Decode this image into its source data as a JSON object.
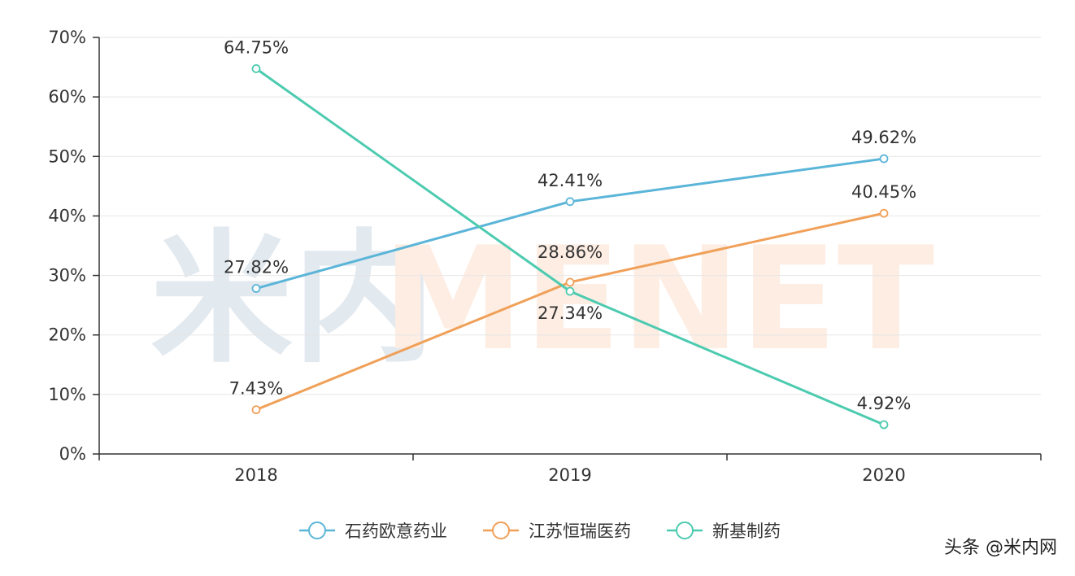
{
  "chart_data": {
    "type": "line",
    "categories": [
      "2018",
      "2019",
      "2020"
    ],
    "ylim": [
      0,
      70
    ],
    "y_ticks": [
      0,
      10,
      20,
      30,
      40,
      50,
      60,
      70
    ],
    "y_tick_suffix": "%",
    "grid": true,
    "legend_position": "bottom-center",
    "series": [
      {
        "name": "石药欧意药业",
        "color": "#5bb5d8",
        "values": [
          27.82,
          42.41,
          49.62
        ],
        "labels": [
          "27.82%",
          "42.41%",
          "49.62%"
        ]
      },
      {
        "name": "江苏恒瑞医药",
        "color": "#f0a058",
        "values": [
          7.43,
          28.86,
          40.45
        ],
        "labels": [
          "7.43%",
          "28.86%",
          "40.45%"
        ]
      },
      {
        "name": "新基制药",
        "color": "#4ccbb0",
        "values": [
          64.75,
          27.34,
          4.92
        ],
        "labels": [
          "64.75%",
          "27.34%",
          "4.92%"
        ]
      }
    ]
  },
  "watermark": {
    "logo_text": "米内MENET",
    "credit": "头条 @米内网"
  }
}
